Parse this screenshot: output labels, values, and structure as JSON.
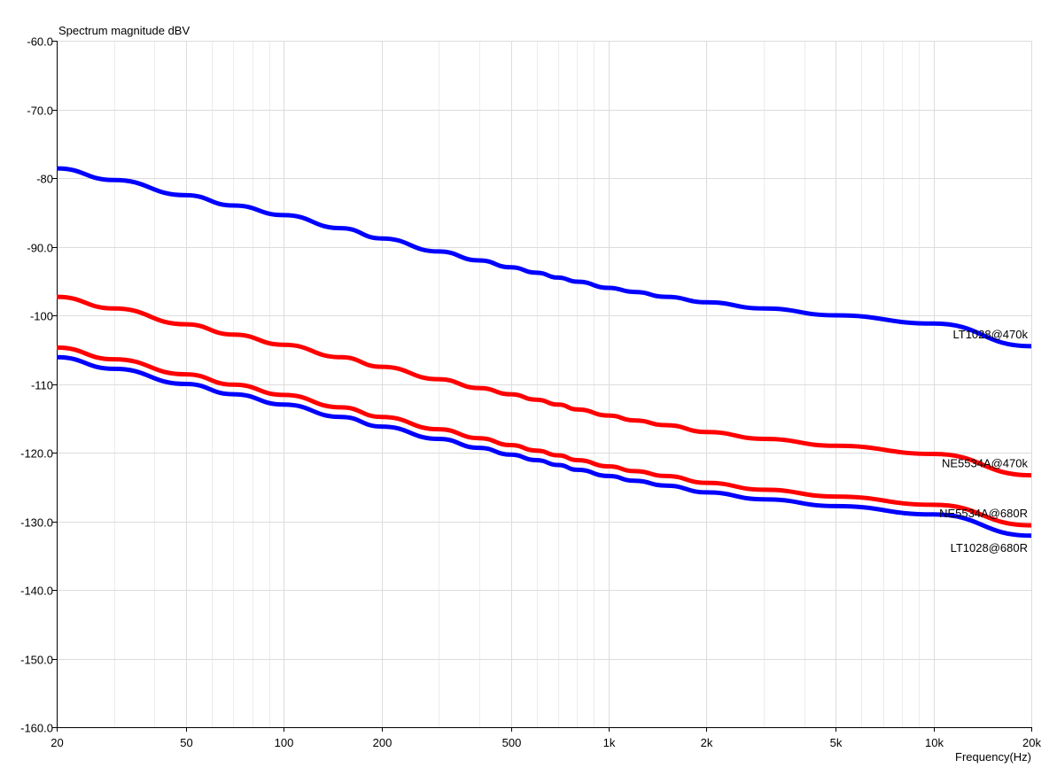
{
  "chart_data": {
    "type": "line",
    "title": "",
    "ylabel": "Spectrum magnitude dBV",
    "xlabel": "Frequency(Hz)",
    "x_scale": "log",
    "xlim": [
      20,
      20000
    ],
    "ylim": [
      -160,
      -60
    ],
    "x_ticks": [
      20,
      50,
      100,
      200,
      500,
      1000,
      2000,
      5000,
      10000,
      20000
    ],
    "x_tick_labels": [
      "20",
      "50",
      "100",
      "200",
      "500",
      "1k",
      "2k",
      "5k",
      "10k",
      "20k"
    ],
    "y_ticks": [
      -60,
      -70,
      -80,
      -90,
      -100,
      -110,
      -120,
      -130,
      -140,
      -150,
      -160
    ],
    "y_tick_labels": [
      "-60.0",
      "-70.0",
      "-80",
      "-90.0",
      "-100",
      "-110",
      "-120.0",
      "-130.0",
      "-140.0",
      "-150.0",
      "-160.0"
    ],
    "grid": true,
    "legend": "inline labels at right end of each series",
    "x": [
      20,
      30,
      50,
      70,
      100,
      150,
      200,
      300,
      400,
      500,
      600,
      700,
      800,
      1000,
      1200,
      1500,
      2000,
      3000,
      5000,
      10000,
      20000
    ],
    "series": [
      {
        "name": "LT1028@470k",
        "color": "#0000ff",
        "values": [
          -78.6,
          -80.3,
          -82.5,
          -84.0,
          -85.4,
          -87.3,
          -88.8,
          -90.7,
          -92.0,
          -93.0,
          -93.8,
          -94.5,
          -95.1,
          -96.0,
          -96.6,
          -97.3,
          -98.1,
          -99.0,
          -100.0,
          -101.2,
          -104.5
        ]
      },
      {
        "name": "NE5534A@470k",
        "color": "#ff0000",
        "values": [
          -97.3,
          -99.0,
          -101.3,
          -102.8,
          -104.3,
          -106.1,
          -107.5,
          -109.3,
          -110.6,
          -111.5,
          -112.3,
          -113.0,
          -113.7,
          -114.6,
          -115.3,
          -116.0,
          -117.0,
          -118.0,
          -119.0,
          -120.2,
          -123.3
        ]
      },
      {
        "name": "NE5534A@680R",
        "color": "#ff0000",
        "values": [
          -104.7,
          -106.4,
          -108.6,
          -110.1,
          -111.6,
          -113.4,
          -114.8,
          -116.6,
          -117.9,
          -118.9,
          -119.7,
          -120.4,
          -121.1,
          -122.0,
          -122.7,
          -123.4,
          -124.4,
          -125.4,
          -126.4,
          -127.6,
          -130.6
        ]
      },
      {
        "name": "LT1028@680R",
        "color": "#0000ff",
        "values": [
          -106.1,
          -107.8,
          -110.0,
          -111.5,
          -113.0,
          -114.8,
          -116.2,
          -118.0,
          -119.3,
          -120.3,
          -121.1,
          -121.8,
          -122.5,
          -123.4,
          -124.1,
          -124.8,
          -125.8,
          -126.8,
          -127.8,
          -129.0,
          -132.1
        ]
      }
    ]
  }
}
